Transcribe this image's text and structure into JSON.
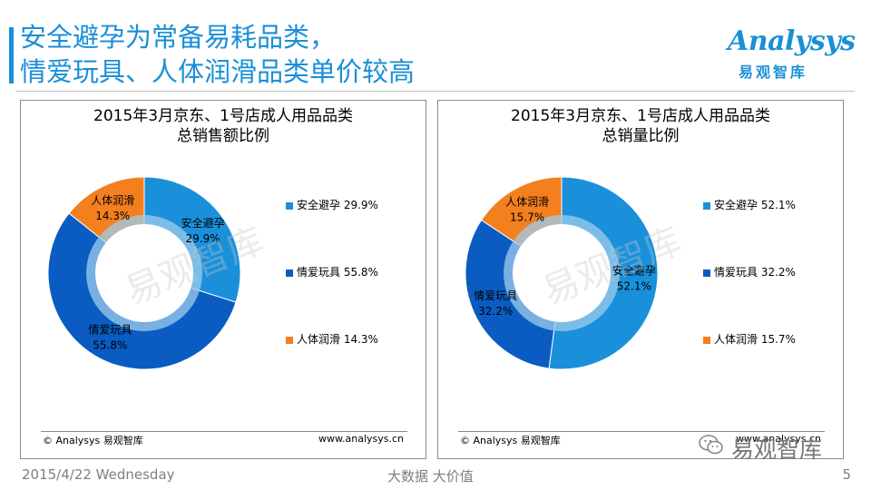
{
  "slide": {
    "title_lines": [
      "安全避孕为常备易耗品类，",
      "情爱玩具、人体润滑品类单价较高"
    ],
    "logo_text": "Analysys",
    "logo_cn": "易观智库",
    "date": "2015/4/22 Wednesday",
    "slogan": "大数据   大价值",
    "page_number": "5",
    "wechat_text": "易观智库",
    "watermark_text": "易观智库"
  },
  "colors": {
    "blue_light": "#1a90db",
    "blue_dark": "#0a5cc2",
    "orange": "#f47f1f",
    "inner_ring": "#9dccec"
  },
  "chart_data": [
    {
      "type": "pie",
      "title_lines": [
        "2015年3月京东、1号店成人用品品类",
        "总销售额比例"
      ],
      "categories": [
        "安全避孕",
        "情爱玩具",
        "人体润滑"
      ],
      "values": [
        29.9,
        55.8,
        14.3
      ],
      "data_labels": [
        "29.9%",
        "55.8%",
        "14.3%"
      ],
      "legend_labels": [
        "安全避孕 29.9%",
        "情爱玩具 55.8%",
        "人体润滑 14.3%"
      ],
      "legend_position": "right",
      "copyright": "© Analysys 易观智库",
      "website": "www.analysys.cn"
    },
    {
      "type": "pie",
      "title_lines": [
        "2015年3月京东、1号店成人用品品类",
        "总销量比例"
      ],
      "categories": [
        "安全避孕",
        "情爱玩具",
        "人体润滑"
      ],
      "values": [
        52.1,
        32.2,
        15.7
      ],
      "data_labels": [
        "52.1%",
        "32.2%",
        "15.7%"
      ],
      "legend_labels": [
        "安全避孕 52.1%",
        "情爱玩具 32.2%",
        "人体润滑 15.7%"
      ],
      "legend_position": "right",
      "copyright": "© Analysys 易观智库",
      "website": "www.analysys.cn"
    }
  ]
}
